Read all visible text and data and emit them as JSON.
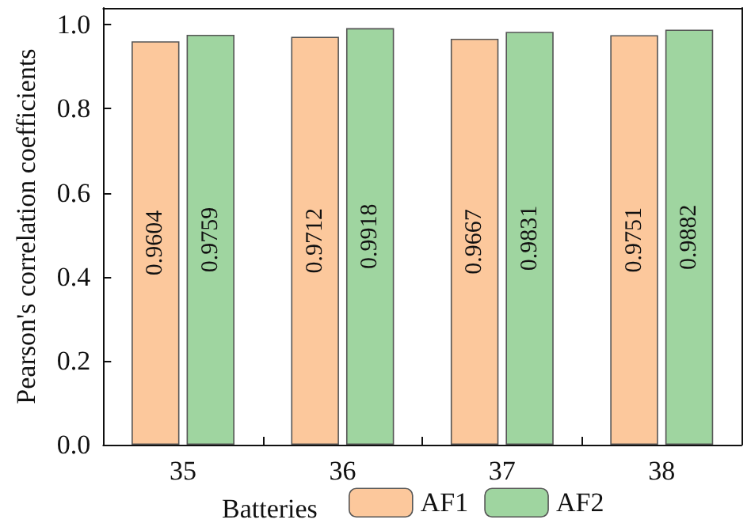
{
  "chart_data": {
    "type": "bar",
    "ylabel": "Pearson's correlation coefficients",
    "legend_title": "Batteries",
    "categories": [
      "35",
      "36",
      "37",
      "38"
    ],
    "series": [
      {
        "name": "AF1",
        "color": "#fcc89c",
        "values": [
          0.9604,
          0.9712,
          0.9667,
          0.9751
        ]
      },
      {
        "name": "AF2",
        "color": "#9fd5a0",
        "values": [
          0.9759,
          0.9918,
          0.9831,
          0.9882
        ]
      }
    ],
    "ylim": [
      0,
      1.04
    ],
    "yticks": [
      {
        "value": 0,
        "label": "0.0"
      },
      {
        "value": 0.2,
        "label": "0.2"
      },
      {
        "value": 0.4,
        "label": "0.4"
      },
      {
        "value": 0.6,
        "label": "0.6"
      },
      {
        "value": 0.8,
        "label": "0.8"
      },
      {
        "value": 1,
        "label": "1.0"
      }
    ],
    "data_labels": true,
    "legend": "bottom",
    "grid": false
  }
}
